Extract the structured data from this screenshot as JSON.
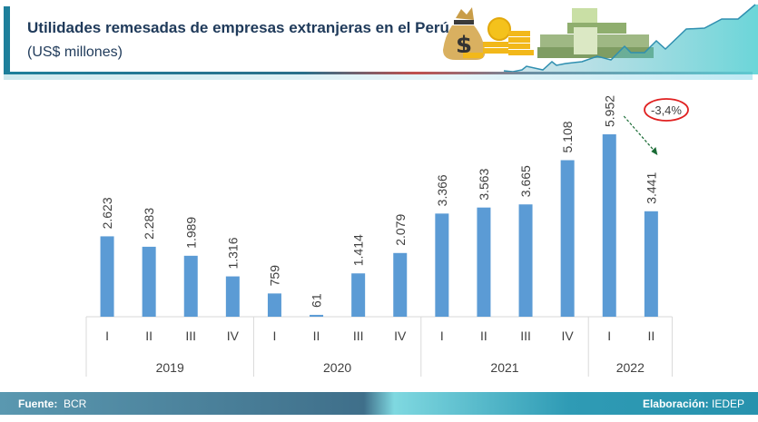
{
  "header": {
    "title": "Utilidades remesadas de empresas extranjeras en el Perú",
    "subtitle": "(US$ millones)",
    "decoration": [
      "money-bag-icon",
      "gold-coins-icon",
      "cash-stack-icon",
      "growth-line-icon"
    ]
  },
  "chart_data": {
    "type": "bar",
    "title": "Utilidades remesadas de empresas extranjeras en el Perú",
    "subtitle": "(US$ millones)",
    "xlabel": "",
    "ylabel": "",
    "ylim": [
      0,
      6000
    ],
    "grid": false,
    "legend": "none",
    "bar_color": "#5b9bd5",
    "groups": [
      {
        "year": "2019",
        "quarters": [
          "I",
          "II",
          "III",
          "IV"
        ]
      },
      {
        "year": "2020",
        "quarters": [
          "I",
          "II",
          "III",
          "IV"
        ]
      },
      {
        "year": "2021",
        "quarters": [
          "I",
          "II",
          "III",
          "IV"
        ]
      },
      {
        "year": "2022",
        "quarters": [
          "I",
          "II"
        ]
      }
    ],
    "categories": [
      "2019-I",
      "2019-II",
      "2019-III",
      "2019-IV",
      "2020-I",
      "2020-II",
      "2020-III",
      "2020-IV",
      "2021-I",
      "2021-II",
      "2021-III",
      "2021-IV",
      "2022-I",
      "2022-II"
    ],
    "values": [
      2623,
      2283,
      1989,
      1316,
      759,
      61,
      1414,
      2079,
      3366,
      3563,
      3665,
      5108,
      5952,
      3441
    ],
    "labels": [
      "2.623",
      "2.283",
      "1.989",
      "1.316",
      "759",
      "61",
      "1.414",
      "2.079",
      "3.366",
      "3.563",
      "3.665",
      "5.108",
      "5.952",
      "3.441"
    ],
    "annotation": {
      "text": "-3,4%",
      "from_index": 12,
      "to_index": 13,
      "circle_color": "#e02020",
      "arrow_color": "#1a6b35"
    }
  },
  "footer": {
    "source_label": "Fuente:",
    "source_value": "BCR",
    "credit_label": "Elaboración:",
    "credit_value": "IEDEP"
  }
}
